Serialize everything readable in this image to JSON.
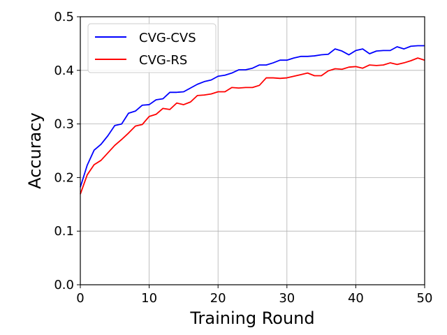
{
  "chart_data": {
    "type": "line",
    "xlabel": "Training Round",
    "ylabel": "Accuracy",
    "xlim": [
      0,
      50
    ],
    "ylim": [
      0,
      0.5
    ],
    "xticks": [
      0,
      10,
      20,
      30,
      40,
      50
    ],
    "yticks": [
      0.0,
      0.1,
      0.2,
      0.3,
      0.4,
      0.5
    ],
    "xtick_labels": [
      "0",
      "10",
      "20",
      "30",
      "40",
      "50"
    ],
    "ytick_labels": [
      "0.0",
      "0.1",
      "0.2",
      "0.3",
      "0.4",
      "0.5"
    ],
    "grid": true,
    "legend_position": "top-left",
    "x": [
      0,
      1,
      2,
      3,
      4,
      5,
      6,
      7,
      8,
      9,
      10,
      11,
      12,
      13,
      14,
      15,
      16,
      17,
      18,
      19,
      20,
      21,
      22,
      23,
      24,
      25,
      26,
      27,
      28,
      29,
      30,
      31,
      32,
      33,
      34,
      35,
      36,
      37,
      38,
      39,
      40,
      41,
      42,
      43,
      44,
      45,
      46,
      47,
      48,
      49,
      50
    ],
    "series": [
      {
        "name": "CVG-CVS",
        "color": "#0000ff",
        "values": [
          0.182,
          0.223,
          0.251,
          0.262,
          0.278,
          0.297,
          0.3,
          0.32,
          0.324,
          0.335,
          0.336,
          0.345,
          0.347,
          0.359,
          0.359,
          0.36,
          0.367,
          0.374,
          0.379,
          0.382,
          0.389,
          0.391,
          0.395,
          0.401,
          0.401,
          0.404,
          0.41,
          0.41,
          0.414,
          0.419,
          0.419,
          0.423,
          0.426,
          0.426,
          0.427,
          0.429,
          0.43,
          0.44,
          0.436,
          0.429,
          0.437,
          0.44,
          0.431,
          0.436,
          0.437,
          0.437,
          0.444,
          0.44,
          0.445,
          0.446,
          0.446
        ]
      },
      {
        "name": "CVG-RS",
        "color": "#ff0000",
        "values": [
          0.169,
          0.205,
          0.224,
          0.232,
          0.246,
          0.26,
          0.271,
          0.283,
          0.296,
          0.299,
          0.314,
          0.318,
          0.329,
          0.327,
          0.339,
          0.336,
          0.341,
          0.353,
          0.354,
          0.356,
          0.36,
          0.36,
          0.368,
          0.367,
          0.368,
          0.368,
          0.372,
          0.386,
          0.386,
          0.385,
          0.386,
          0.389,
          0.392,
          0.395,
          0.39,
          0.39,
          0.399,
          0.403,
          0.402,
          0.406,
          0.407,
          0.404,
          0.41,
          0.409,
          0.41,
          0.414,
          0.411,
          0.414,
          0.418,
          0.423,
          0.419
        ]
      }
    ]
  }
}
